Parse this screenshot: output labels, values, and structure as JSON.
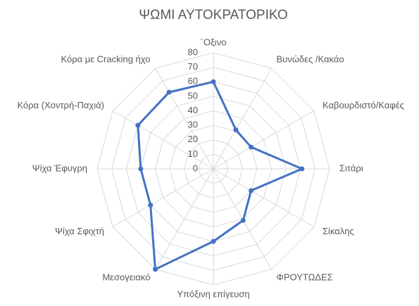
{
  "chart_data": {
    "type": "radar",
    "title": "ΨΩΜΙ ΑΥΤΟΚΡΑΤΟΡΙΚΟ",
    "categories": [
      "¨Οξινο",
      "Βυνώδες /Κακάο",
      "Καβουρδιστό/Καφές",
      "Σιτάρι",
      "Σίκαλης",
      "ΦΡΟΥΤΩΔΕΣ",
      "Υπόξινη επίγευση",
      "Μεσογειακό",
      "Ψίχα Σφιχτή",
      "Ψίχα Έφυγρη",
      "Κόρα (Χοντρή-Παχιά)",
      "Κόρα με Cracking ήχο"
    ],
    "values": [
      60,
      31,
      30,
      61,
      30,
      41,
      50,
      80,
      50,
      50,
      60,
      61
    ],
    "color": "#4472c4",
    "ylim": [
      0,
      80
    ],
    "yticks": [
      0,
      10,
      20,
      30,
      40,
      50,
      60,
      70,
      80
    ],
    "grid": true
  }
}
